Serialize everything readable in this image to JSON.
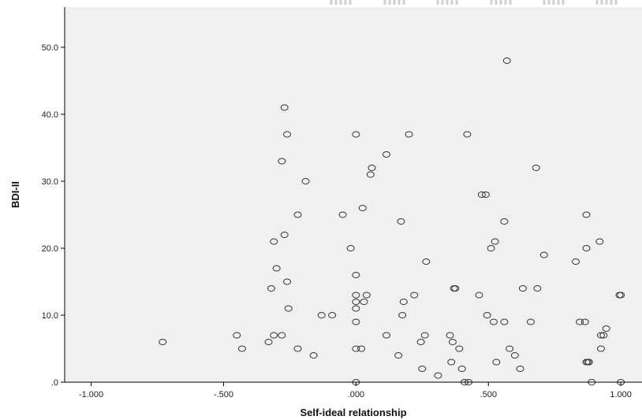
{
  "chart_data": {
    "type": "scatter",
    "title": "",
    "xlabel": "Self-ideal relationship",
    "ylabel": "BDI-II",
    "xlim": [
      -1.1,
      1.08
    ],
    "ylim": [
      0,
      56
    ],
    "x_ticks": [
      -1.0,
      -0.5,
      0.0,
      0.5,
      1.0
    ],
    "x_tick_labels": [
      "-1.000",
      "-.500",
      ".000",
      ".500",
      "1.000"
    ],
    "y_ticks": [
      0,
      10,
      20,
      30,
      40,
      50
    ],
    "y_tick_labels": [
      ".0",
      "10.0",
      "20.0",
      "30.0",
      "40.0",
      "50.0"
    ],
    "grid": false,
    "marker": "open-circle",
    "colors": {
      "plot_background": "#f0f0f0",
      "marker_stroke": "#333333",
      "axis": "#000000"
    },
    "points": [
      [
        -0.73,
        6
      ],
      [
        -0.45,
        7
      ],
      [
        -0.43,
        5
      ],
      [
        -0.33,
        6
      ],
      [
        -0.32,
        14
      ],
      [
        -0.31,
        7
      ],
      [
        -0.31,
        21
      ],
      [
        -0.3,
        17
      ],
      [
        -0.28,
        7
      ],
      [
        -0.28,
        33
      ],
      [
        -0.27,
        22
      ],
      [
        -0.27,
        41
      ],
      [
        -0.26,
        37
      ],
      [
        -0.26,
        15
      ],
      [
        -0.255,
        11
      ],
      [
        -0.22,
        25
      ],
      [
        -0.22,
        5
      ],
      [
        -0.19,
        30
      ],
      [
        -0.16,
        4
      ],
      [
        -0.13,
        10
      ],
      [
        -0.09,
        10
      ],
      [
        -0.05,
        25
      ],
      [
        -0.02,
        20
      ],
      [
        0.0,
        37
      ],
      [
        0.0,
        16
      ],
      [
        0.0,
        13
      ],
      [
        0.0,
        12
      ],
      [
        0.0,
        11
      ],
      [
        0.0,
        9
      ],
      [
        0.0,
        5
      ],
      [
        0.0,
        0
      ],
      [
        0.02,
        5
      ],
      [
        0.025,
        26
      ],
      [
        0.03,
        12
      ],
      [
        0.04,
        13
      ],
      [
        0.055,
        31
      ],
      [
        0.06,
        32
      ],
      [
        0.115,
        34
      ],
      [
        0.115,
        7
      ],
      [
        0.16,
        4
      ],
      [
        0.17,
        24
      ],
      [
        0.175,
        10
      ],
      [
        0.18,
        12
      ],
      [
        0.2,
        37
      ],
      [
        0.22,
        13
      ],
      [
        0.245,
        6
      ],
      [
        0.25,
        2
      ],
      [
        0.26,
        7
      ],
      [
        0.265,
        18
      ],
      [
        0.31,
        1
      ],
      [
        0.355,
        7
      ],
      [
        0.36,
        3
      ],
      [
        0.365,
        6
      ],
      [
        0.37,
        14
      ],
      [
        0.375,
        14
      ],
      [
        0.39,
        5
      ],
      [
        0.4,
        2
      ],
      [
        0.41,
        0
      ],
      [
        0.42,
        37
      ],
      [
        0.425,
        0
      ],
      [
        0.465,
        13
      ],
      [
        0.475,
        28
      ],
      [
        0.49,
        28
      ],
      [
        0.495,
        10
      ],
      [
        0.51,
        20
      ],
      [
        0.52,
        9
      ],
      [
        0.525,
        21
      ],
      [
        0.53,
        3
      ],
      [
        0.56,
        24
      ],
      [
        0.56,
        9
      ],
      [
        0.57,
        48
      ],
      [
        0.58,
        5
      ],
      [
        0.6,
        4
      ],
      [
        0.62,
        2
      ],
      [
        0.63,
        14
      ],
      [
        0.66,
        9
      ],
      [
        0.68,
        32
      ],
      [
        0.685,
        14
      ],
      [
        0.71,
        19
      ],
      [
        0.83,
        18
      ],
      [
        0.845,
        9
      ],
      [
        0.865,
        9
      ],
      [
        0.87,
        25
      ],
      [
        0.87,
        20
      ],
      [
        0.87,
        3
      ],
      [
        0.875,
        3
      ],
      [
        0.88,
        3
      ],
      [
        0.89,
        0
      ],
      [
        0.92,
        21
      ],
      [
        0.925,
        5
      ],
      [
        0.925,
        7
      ],
      [
        0.935,
        7
      ],
      [
        0.945,
        8
      ],
      [
        0.995,
        13
      ],
      [
        1.0,
        13
      ],
      [
        1.0,
        0
      ]
    ]
  }
}
